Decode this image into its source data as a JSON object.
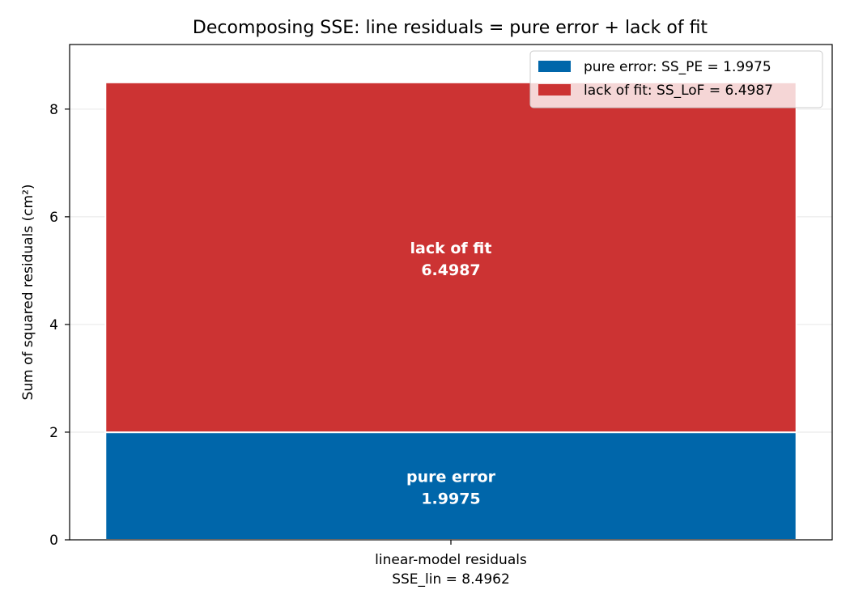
{
  "chart_data": {
    "type": "bar",
    "stacked": true,
    "title": "Decomposing SSE: line residuals = pure error + lack of fit",
    "ylabel": "Sum of squared residuals (cm²)",
    "ylim": [
      0,
      9.2
    ],
    "yticks": [
      0,
      2,
      4,
      6,
      8
    ],
    "grid": "y",
    "legend_position": "top-right",
    "categories": [
      {
        "line1": "linear-model residuals",
        "line2": "SSE_lin = 8.4962"
      }
    ],
    "series": [
      {
        "name": "pure error: SS_PE = 1.9975",
        "values": [
          1.9975
        ],
        "color": "#0066aa",
        "label_name": "pure error",
        "label_value": "1.9975"
      },
      {
        "name": "lack of fit: SS_LoF = 6.4987",
        "values": [
          6.4987
        ],
        "color": "#cc3333",
        "label_name": "lack of fit",
        "label_value": "6.4987"
      }
    ]
  }
}
